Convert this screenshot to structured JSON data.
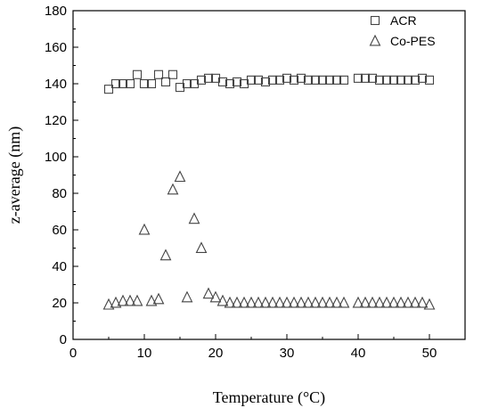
{
  "chart_data": {
    "type": "scatter",
    "title": "",
    "xlabel": "Temperature (°C)",
    "ylabel": "z-average (nm)",
    "xlim": [
      0,
      55
    ],
    "ylim": [
      0,
      180
    ],
    "xticks": [
      0,
      10,
      20,
      30,
      40,
      50
    ],
    "yticks": [
      0,
      20,
      40,
      60,
      80,
      100,
      120,
      140,
      160,
      180
    ],
    "grid": false,
    "legend_position": "top-right",
    "series": [
      {
        "name": "ACR",
        "marker": "square",
        "color": "#444444",
        "points": [
          [
            5,
            137
          ],
          [
            6,
            140
          ],
          [
            7,
            140
          ],
          [
            8,
            140
          ],
          [
            9,
            145
          ],
          [
            10,
            140
          ],
          [
            11,
            140
          ],
          [
            12,
            145
          ],
          [
            13,
            141
          ],
          [
            14,
            145
          ],
          [
            15,
            138
          ],
          [
            16,
            140
          ],
          [
            17,
            140
          ],
          [
            18,
            142
          ],
          [
            19,
            143
          ],
          [
            20,
            143
          ],
          [
            21,
            141
          ],
          [
            22,
            140
          ],
          [
            23,
            141
          ],
          [
            24,
            140
          ],
          [
            25,
            142
          ],
          [
            26,
            142
          ],
          [
            27,
            141
          ],
          [
            28,
            142
          ],
          [
            29,
            142
          ],
          [
            30,
            143
          ],
          [
            31,
            142
          ],
          [
            32,
            143
          ],
          [
            33,
            142
          ],
          [
            34,
            142
          ],
          [
            35,
            142
          ],
          [
            36,
            142
          ],
          [
            37,
            142
          ],
          [
            38,
            142
          ],
          [
            40,
            143
          ],
          [
            41,
            143
          ],
          [
            42,
            143
          ],
          [
            43,
            142
          ],
          [
            44,
            142
          ],
          [
            45,
            142
          ],
          [
            46,
            142
          ],
          [
            47,
            142
          ],
          [
            48,
            142
          ],
          [
            49,
            143
          ],
          [
            50,
            142
          ]
        ]
      },
      {
        "name": "Co-PES",
        "marker": "triangle",
        "color": "#444444",
        "points": [
          [
            5,
            19
          ],
          [
            6,
            20
          ],
          [
            7,
            21
          ],
          [
            8,
            21
          ],
          [
            9,
            21
          ],
          [
            10,
            60
          ],
          [
            11,
            21
          ],
          [
            12,
            22
          ],
          [
            13,
            46
          ],
          [
            14,
            82
          ],
          [
            15,
            89
          ],
          [
            16,
            23
          ],
          [
            17,
            66
          ],
          [
            18,
            50
          ],
          [
            19,
            25
          ],
          [
            20,
            23
          ],
          [
            21,
            21
          ],
          [
            22,
            20
          ],
          [
            23,
            20
          ],
          [
            24,
            20
          ],
          [
            25,
            20
          ],
          [
            26,
            20
          ],
          [
            27,
            20
          ],
          [
            28,
            20
          ],
          [
            29,
            20
          ],
          [
            30,
            20
          ],
          [
            31,
            20
          ],
          [
            32,
            20
          ],
          [
            33,
            20
          ],
          [
            34,
            20
          ],
          [
            35,
            20
          ],
          [
            36,
            20
          ],
          [
            37,
            20
          ],
          [
            38,
            20
          ],
          [
            40,
            20
          ],
          [
            41,
            20
          ],
          [
            42,
            20
          ],
          [
            43,
            20
          ],
          [
            44,
            20
          ],
          [
            45,
            20
          ],
          [
            46,
            20
          ],
          [
            47,
            20
          ],
          [
            48,
            20
          ],
          [
            49,
            20
          ],
          [
            50,
            19
          ]
        ]
      }
    ]
  }
}
